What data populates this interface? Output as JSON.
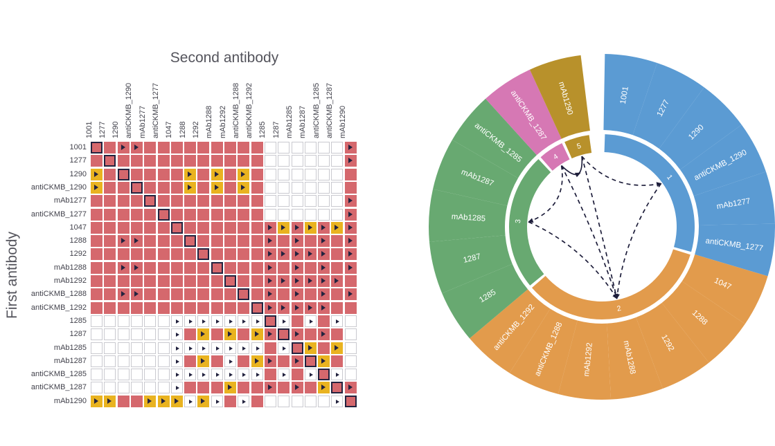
{
  "colors": {
    "matrix_red": "#d5686d",
    "matrix_yellow": "#e9b320",
    "marker_navy": "#23233f",
    "edge_navy": "#1d1d3a",
    "title_grey": "#54545c",
    "label_grey": "#41414b",
    "group_blue": "#5b9bd3",
    "group_orange": "#e29b4c",
    "group_green": "#68a971",
    "group_pink": "#d678b4",
    "group_gold": "#b8912b"
  },
  "chart_data": [
    {
      "type": "heatmap",
      "xlabel": "Second antibody",
      "ylabel": "First antibody",
      "categories": [
        "1001",
        "1277",
        "1290",
        "antiCKMB_1290",
        "mAb1277",
        "antiCKMB_1277",
        "1047",
        "1288",
        "1292",
        "mAb1288",
        "mAb1292",
        "antiCKMB_1288",
        "antiCKMB_1292",
        "1285",
        "1287",
        "mAb1285",
        "mAb1287",
        "antiCKMB_1285",
        "antiCKMB_1287",
        "mAb1290"
      ],
      "cell_code_legend": {
        "r": "red filled cell",
        "y": "yellow filled cell",
        "w": "empty white cell",
        "t": "right-pointing triangle marker",
        "d": "diagonal self-pair (dark outline)"
      },
      "cells": [
        [
          "rd",
          "r",
          "rt",
          "rt",
          "r",
          "r",
          "r",
          "r",
          "r",
          "r",
          "r",
          "r",
          "r",
          "w",
          "w",
          "w",
          "w",
          "w",
          "w",
          "rt"
        ],
        [
          "r",
          "rd",
          "r",
          "r",
          "r",
          "r",
          "r",
          "r",
          "r",
          "r",
          "r",
          "r",
          "r",
          "w",
          "w",
          "w",
          "w",
          "w",
          "w",
          "rt"
        ],
        [
          "yt",
          "r",
          "rd",
          "r",
          "r",
          "r",
          "r",
          "yt",
          "r",
          "yt",
          "r",
          "yt",
          "r",
          "w",
          "w",
          "w",
          "w",
          "w",
          "w",
          "r"
        ],
        [
          "yt",
          "r",
          "r",
          "rd",
          "r",
          "r",
          "r",
          "yt",
          "r",
          "yt",
          "r",
          "yt",
          "r",
          "w",
          "w",
          "w",
          "w",
          "w",
          "w",
          "r"
        ],
        [
          "r",
          "r",
          "r",
          "r",
          "rd",
          "r",
          "r",
          "r",
          "r",
          "r",
          "r",
          "r",
          "r",
          "w",
          "w",
          "w",
          "w",
          "w",
          "w",
          "rt"
        ],
        [
          "r",
          "r",
          "r",
          "r",
          "r",
          "rd",
          "r",
          "r",
          "r",
          "r",
          "r",
          "r",
          "r",
          "w",
          "w",
          "w",
          "w",
          "w",
          "w",
          "rt"
        ],
        [
          "r",
          "r",
          "r",
          "r",
          "r",
          "r",
          "rd",
          "r",
          "r",
          "r",
          "r",
          "r",
          "r",
          "rt",
          "yt",
          "rt",
          "yt",
          "rt",
          "yt",
          "rt"
        ],
        [
          "r",
          "r",
          "rt",
          "rt",
          "r",
          "r",
          "r",
          "rd",
          "r",
          "r",
          "r",
          "r",
          "r",
          "rt",
          "r",
          "rt",
          "r",
          "rt",
          "r",
          "rt"
        ],
        [
          "r",
          "r",
          "r",
          "r",
          "r",
          "r",
          "r",
          "r",
          "rd",
          "r",
          "r",
          "r",
          "r",
          "rt",
          "rt",
          "rt",
          "rt",
          "rt",
          "r",
          "rt"
        ],
        [
          "r",
          "r",
          "rt",
          "rt",
          "r",
          "r",
          "r",
          "r",
          "r",
          "rd",
          "r",
          "r",
          "r",
          "rt",
          "r",
          "rt",
          "r",
          "rt",
          "r",
          "rt"
        ],
        [
          "r",
          "r",
          "r",
          "r",
          "r",
          "r",
          "r",
          "r",
          "r",
          "r",
          "rd",
          "r",
          "r",
          "rt",
          "rt",
          "rt",
          "rt",
          "rt",
          "rt",
          "r"
        ],
        [
          "r",
          "r",
          "rt",
          "rt",
          "r",
          "r",
          "r",
          "r",
          "r",
          "r",
          "r",
          "rd",
          "r",
          "rt",
          "r",
          "rt",
          "r",
          "rt",
          "r",
          "rt"
        ],
        [
          "r",
          "r",
          "r",
          "r",
          "r",
          "r",
          "r",
          "r",
          "r",
          "r",
          "r",
          "r",
          "rd",
          "rt",
          "rt",
          "rt",
          "rt",
          "rt",
          "r",
          "r"
        ],
        [
          "w",
          "w",
          "w",
          "w",
          "w",
          "w",
          "wt",
          "wt",
          "wt",
          "wt",
          "wt",
          "wt",
          "wt",
          "rd",
          "wt",
          "r",
          "wt",
          "r",
          "wt",
          "w"
        ],
        [
          "w",
          "w",
          "w",
          "w",
          "w",
          "w",
          "wt",
          "r",
          "yt",
          "r",
          "yt",
          "r",
          "yt",
          "rt",
          "rd",
          "rt",
          "r",
          "rt",
          "r",
          "w"
        ],
        [
          "w",
          "w",
          "w",
          "w",
          "w",
          "w",
          "wt",
          "wt",
          "wt",
          "wt",
          "wt",
          "wt",
          "wt",
          "r",
          "wt",
          "rd",
          "yt",
          "r",
          "yt",
          "w"
        ],
        [
          "w",
          "w",
          "w",
          "w",
          "w",
          "w",
          "wt",
          "r",
          "yt",
          "r",
          "wt",
          "r",
          "yt",
          "rt",
          "r",
          "rt",
          "rd",
          "yt",
          "r",
          "w"
        ],
        [
          "w",
          "w",
          "w",
          "w",
          "w",
          "w",
          "wt",
          "wt",
          "wt",
          "wt",
          "wt",
          "wt",
          "wt",
          "r",
          "wt",
          "r",
          "wt",
          "rd",
          "wt",
          "w"
        ],
        [
          "w",
          "w",
          "w",
          "w",
          "w",
          "w",
          "wt",
          "r",
          "r",
          "r",
          "yt",
          "r",
          "r",
          "rt",
          "r",
          "rt",
          "r",
          "yt",
          "rd",
          "rt"
        ],
        [
          "yt",
          "yt",
          "r",
          "r",
          "yt",
          "yt",
          "yt",
          "wt",
          "yt",
          "wt",
          "r",
          "wt",
          "r",
          "w",
          "w",
          "w",
          "w",
          "w",
          "wt",
          "rd"
        ]
      ]
    },
    {
      "type": "chord",
      "start_deg": 1,
      "gap_deg": 8,
      "groups": [
        {
          "id": "1",
          "color": "#5b9bd3",
          "items": [
            "1001",
            "1277",
            "1290",
            "antiCKMB_1290",
            "mAb1277",
            "antiCKMB_1277"
          ]
        },
        {
          "id": "2",
          "color": "#e29b4c",
          "items": [
            "1047",
            "1288",
            "1292",
            "mAb1288",
            "mAb1292",
            "antiCKMB_1288",
            "antiCKMB_1292"
          ]
        },
        {
          "id": "3",
          "color": "#68a971",
          "items": [
            "1285",
            "1287",
            "mAb1285",
            "mAb1287",
            "antiCKMB_1285"
          ]
        },
        {
          "id": "4",
          "color": "#d678b4",
          "items": [
            "antiCKMB_1287"
          ]
        },
        {
          "id": "5",
          "color": "#b8912b",
          "items": [
            "mAb1290"
          ]
        }
      ],
      "ring_numbers": [
        "1",
        "2",
        "3",
        "4",
        "5"
      ],
      "edges": [
        {
          "from": "4",
          "to": "5",
          "style": "solid"
        },
        {
          "from": "5",
          "to": "1",
          "style": "dashed"
        },
        {
          "from": "4",
          "to": "3",
          "style": "dashed"
        },
        {
          "from": "1",
          "to": "2",
          "style": "dashed"
        },
        {
          "from": "3",
          "to": "2",
          "style": "dashed"
        },
        {
          "from": "4",
          "to": "2",
          "style": "dashed"
        },
        {
          "from": "5",
          "to": "2",
          "style": "dashed"
        }
      ]
    }
  ]
}
